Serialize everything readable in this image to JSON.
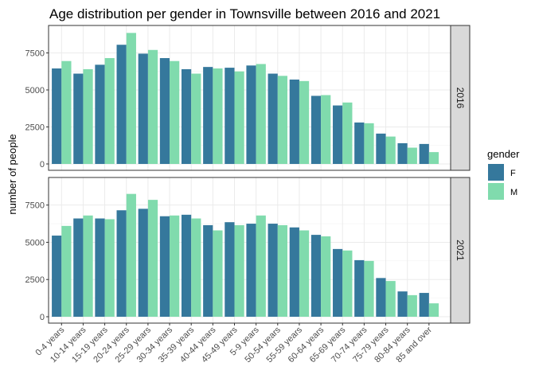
{
  "chart_data": {
    "type": "bar",
    "title": "Age distribution per gender in Townsville between 2016 and 2021",
    "ylabel": "number of people",
    "xlabel": "",
    "categories": [
      "0-4 years",
      "10-14 years",
      "15-19 years",
      "20-24 years",
      "25-29 years",
      "30-34 years",
      "35-39 years",
      "40-44 years",
      "45-49 years",
      "5-9 years",
      "50-54 years",
      "55-59 years",
      "60-64 years",
      "65-69 years",
      "70-74 years",
      "75-79 years",
      "80-84 years",
      "85 and over"
    ],
    "yticks": [
      0,
      2500,
      5000,
      7500
    ],
    "ytick_labels": [
      "0",
      "2500",
      "5000",
      "7500"
    ],
    "ylim": [
      0,
      9300
    ],
    "grid": true,
    "legend": {
      "title": "gender",
      "position": "right",
      "entries": [
        {
          "name": "F",
          "color": "#35789c"
        },
        {
          "name": "M",
          "color": "#80dbad"
        }
      ]
    },
    "facets": [
      {
        "label": "2016",
        "series": [
          {
            "name": "F",
            "color": "#35789c",
            "values": [
              6450,
              6100,
              6700,
              8050,
              7450,
              7150,
              6400,
              6550,
              6500,
              6650,
              6100,
              5700,
              4600,
              3950,
              2800,
              2050,
              1400,
              1350
            ]
          },
          {
            "name": "M",
            "color": "#80dbad",
            "values": [
              6950,
              6400,
              7150,
              8850,
              7700,
              6950,
              6100,
              6450,
              6250,
              6750,
              5950,
              5600,
              4650,
              4150,
              2750,
              1850,
              1100,
              800
            ]
          }
        ]
      },
      {
        "label": "2021",
        "series": [
          {
            "name": "F",
            "color": "#35789c",
            "values": [
              5450,
              6600,
              6600,
              7150,
              7250,
              6750,
              6850,
              6150,
              6350,
              6250,
              6250,
              6000,
              5500,
              4550,
              3800,
              2600,
              1700,
              1600
            ]
          },
          {
            "name": "M",
            "color": "#80dbad",
            "values": [
              6100,
              6800,
              6550,
              8250,
              7850,
              6800,
              6600,
              5800,
              6150,
              6800,
              6150,
              5800,
              5400,
              4450,
              3750,
              2400,
              1450,
              900
            ]
          }
        ]
      }
    ]
  }
}
